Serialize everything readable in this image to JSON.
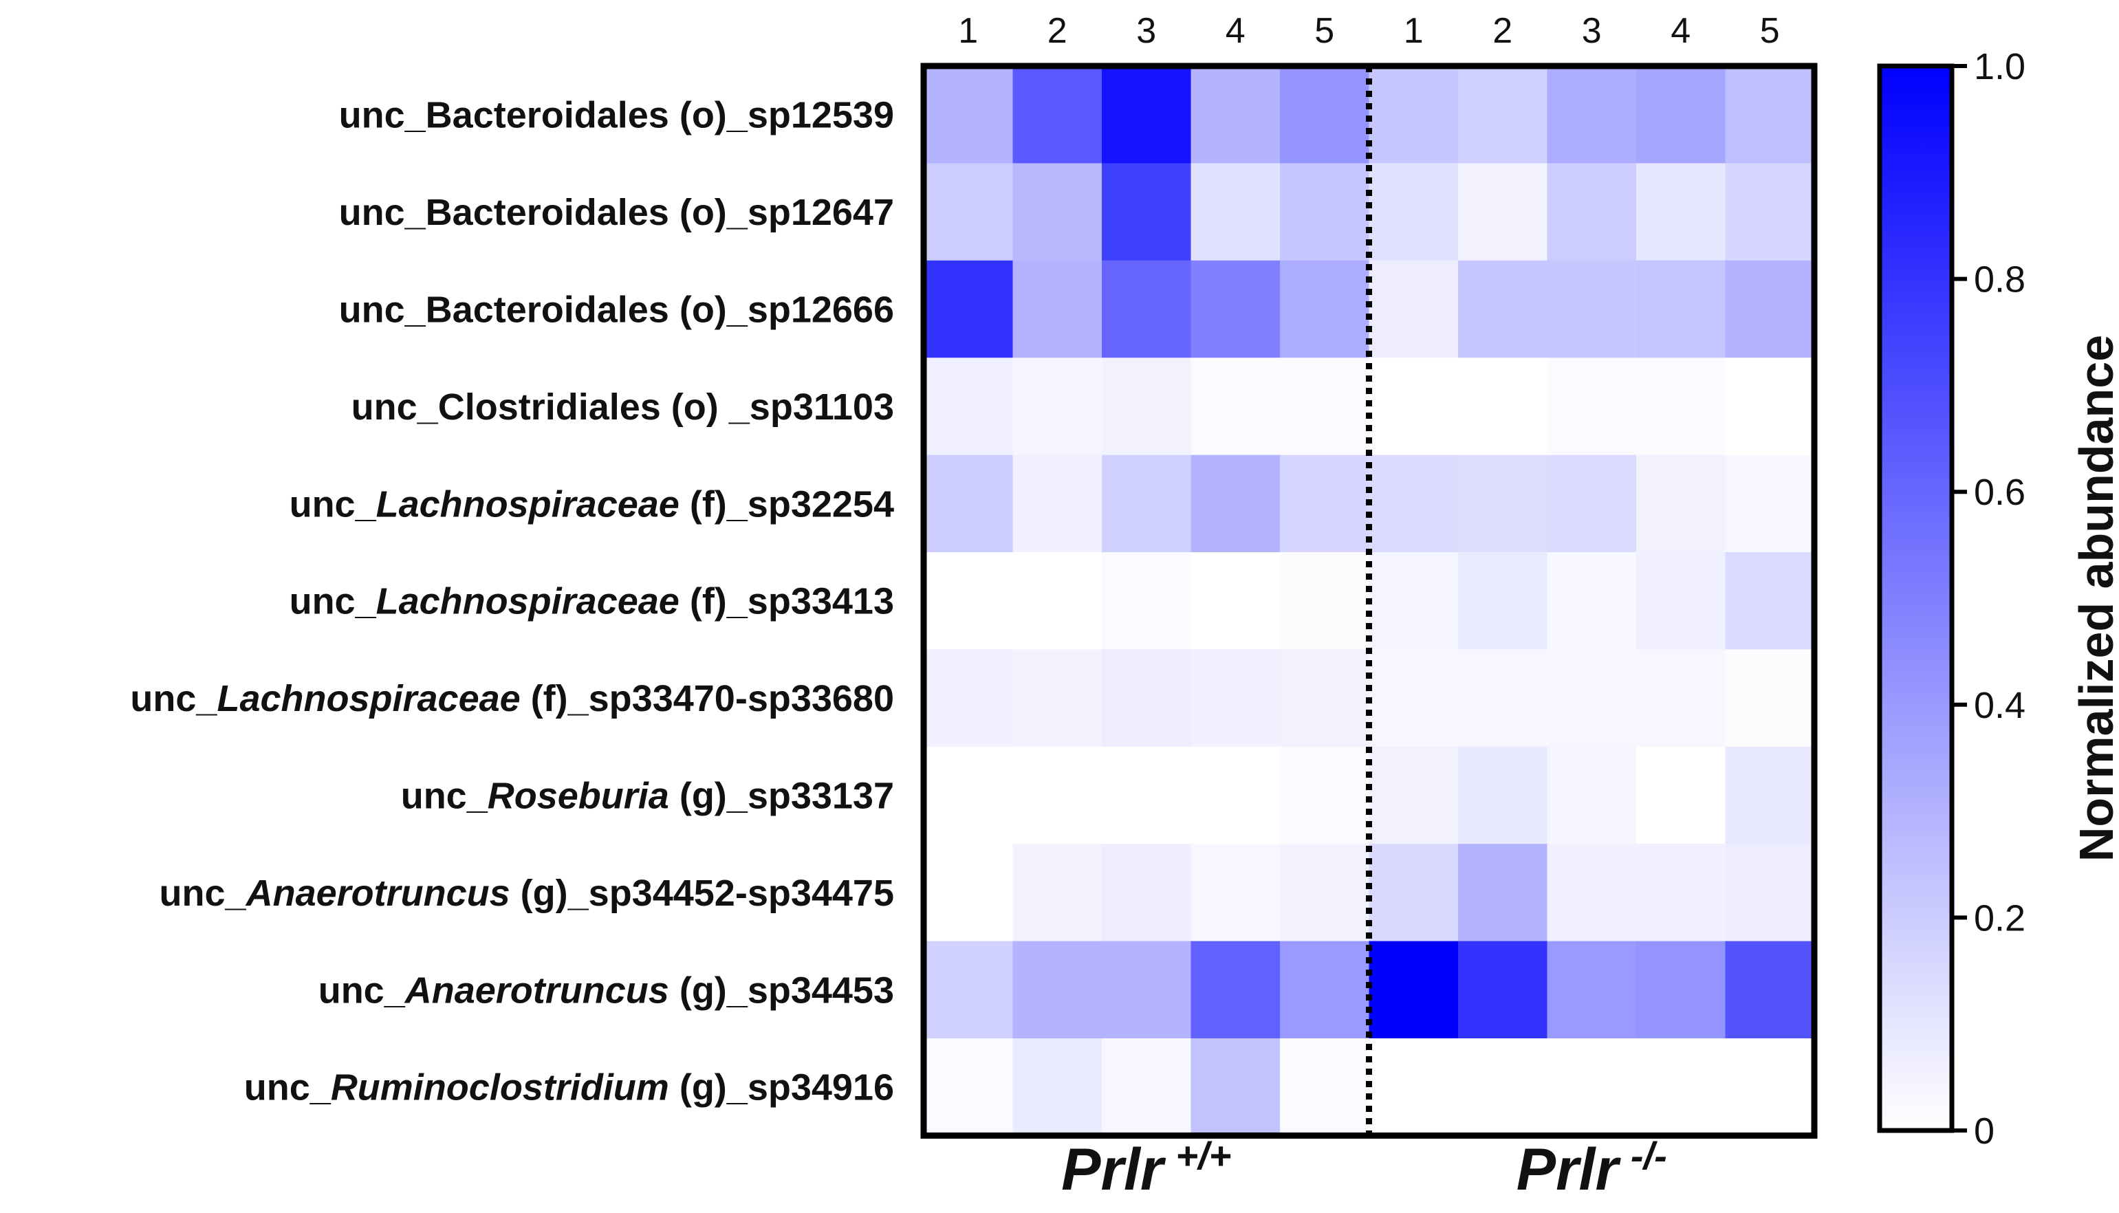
{
  "chart_data": {
    "type": "heatmap",
    "title": "",
    "columns": [
      "1",
      "2",
      "3",
      "4",
      "5",
      "1",
      "2",
      "3",
      "4",
      "5"
    ],
    "groups": [
      {
        "name": "Prlr",
        "superscript": "+/+",
        "columns": [
          0,
          1,
          2,
          3,
          4
        ]
      },
      {
        "name": "Prlr",
        "superscript": "-/-",
        "columns": [
          5,
          6,
          7,
          8,
          9
        ]
      }
    ],
    "rows": [
      {
        "parts": [
          {
            "text": "unc_",
            "italic": false
          },
          {
            "text": "Bacteroidales (o)_sp12539",
            "italic": false
          }
        ]
      },
      {
        "parts": [
          {
            "text": "unc_",
            "italic": false
          },
          {
            "text": "Bacteroidales (o)_sp12647",
            "italic": false
          }
        ]
      },
      {
        "parts": [
          {
            "text": "unc_",
            "italic": false
          },
          {
            "text": "Bacteroidales (o)_sp12666",
            "italic": false
          }
        ]
      },
      {
        "parts": [
          {
            "text": "unc_",
            "italic": false
          },
          {
            "text": "Clostridiales (o) _sp31103",
            "italic": false
          }
        ]
      },
      {
        "parts": [
          {
            "text": "unc_",
            "italic": false
          },
          {
            "text": "Lachnospiraceae",
            "italic": true
          },
          {
            "text": " (f)_sp32254",
            "italic": false
          }
        ]
      },
      {
        "parts": [
          {
            "text": "unc_",
            "italic": false
          },
          {
            "text": "Lachnospiraceae",
            "italic": true
          },
          {
            "text": " (f)_sp33413",
            "italic": false
          }
        ]
      },
      {
        "parts": [
          {
            "text": "unc_",
            "italic": false
          },
          {
            "text": "Lachnospiraceae",
            "italic": true
          },
          {
            "text": " (f)_sp33470-sp33680",
            "italic": false
          }
        ]
      },
      {
        "parts": [
          {
            "text": "unc_",
            "italic": false
          },
          {
            "text": "Roseburia",
            "italic": true
          },
          {
            "text": " (g)_sp33137",
            "italic": false
          }
        ]
      },
      {
        "parts": [
          {
            "text": "unc_",
            "italic": false
          },
          {
            "text": "Anaerotruncus",
            "italic": true
          },
          {
            "text": " (g)_sp34452-sp34475",
            "italic": false
          }
        ]
      },
      {
        "parts": [
          {
            "text": "unc_",
            "italic": false
          },
          {
            "text": "Anaerotruncus",
            "italic": true
          },
          {
            "text": " (g)_sp34453",
            "italic": false
          }
        ]
      },
      {
        "parts": [
          {
            "text": "unc_",
            "italic": false
          },
          {
            "text": "Ruminoclostridium",
            "italic": true
          },
          {
            "text": " (g)_sp34916",
            "italic": false
          }
        ]
      }
    ],
    "values": [
      [
        0.3,
        0.65,
        0.92,
        0.3,
        0.42,
        0.22,
        0.18,
        0.32,
        0.35,
        0.25
      ],
      [
        0.2,
        0.28,
        0.75,
        0.12,
        0.22,
        0.12,
        0.05,
        0.2,
        0.1,
        0.16
      ],
      [
        0.8,
        0.3,
        0.6,
        0.5,
        0.32,
        0.07,
        0.22,
        0.22,
        0.23,
        0.3
      ],
      [
        0.06,
        0.04,
        0.05,
        0.02,
        0.02,
        0.0,
        0.0,
        0.02,
        0.02,
        0.0
      ],
      [
        0.2,
        0.06,
        0.18,
        0.3,
        0.16,
        0.14,
        0.13,
        0.14,
        0.05,
        0.03
      ],
      [
        0.0,
        0.0,
        0.02,
        0.0,
        0.01,
        0.04,
        0.08,
        0.03,
        0.06,
        0.14
      ],
      [
        0.06,
        0.05,
        0.07,
        0.06,
        0.05,
        0.03,
        0.03,
        0.03,
        0.03,
        0.01
      ],
      [
        0.0,
        0.0,
        0.0,
        0.0,
        0.02,
        0.05,
        0.09,
        0.04,
        0.0,
        0.09
      ],
      [
        0.0,
        0.05,
        0.07,
        0.03,
        0.05,
        0.15,
        0.3,
        0.06,
        0.06,
        0.07
      ],
      [
        0.18,
        0.3,
        0.3,
        0.62,
        0.4,
        1.0,
        0.8,
        0.4,
        0.42,
        0.67
      ],
      [
        0.02,
        0.08,
        0.03,
        0.24,
        0.02,
        0.0,
        0.0,
        0.0,
        0.0,
        0.0
      ]
    ],
    "colorbar": {
      "label": "Normalized abundance",
      "range": [
        0,
        1
      ],
      "ticks": [
        "0",
        "0.2",
        "0.4",
        "0.6",
        "0.8",
        "1.0"
      ],
      "tick_values": [
        0,
        0.2,
        0.4,
        0.6,
        0.8,
        1.0
      ],
      "color_low": "#ffffff",
      "color_high": "#0000ff"
    }
  }
}
